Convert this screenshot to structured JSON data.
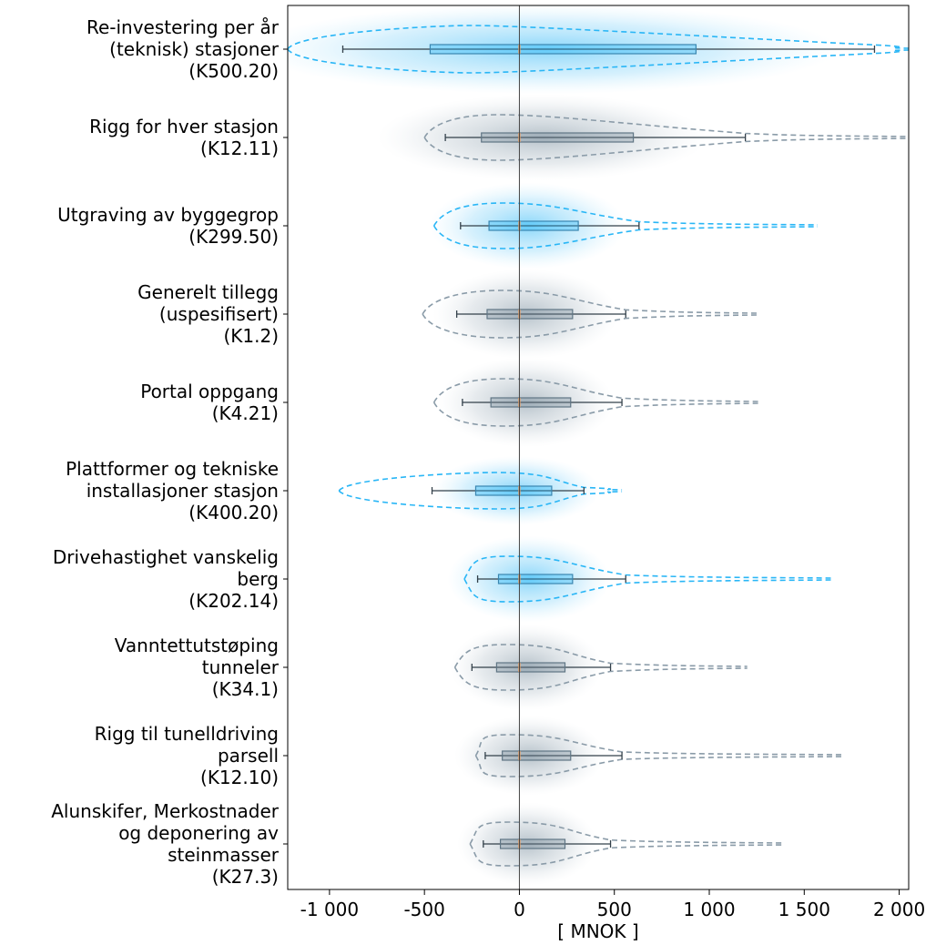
{
  "chart_data": {
    "type": "violin-box",
    "xlabel": "[ MNOK ]",
    "xlim": [
      -1220,
      2050
    ],
    "xticks": [
      {
        "value": -1000,
        "label": "-1 000"
      },
      {
        "value": -500,
        "label": "-500"
      },
      {
        "value": 0,
        "label": "0"
      },
      {
        "value": 500,
        "label": "500"
      },
      {
        "value": 1000,
        "label": "1 000"
      },
      {
        "value": 1500,
        "label": "1 500"
      },
      {
        "value": 2000,
        "label": "2 000"
      }
    ],
    "reference_line": 0,
    "colors": {
      "highlight": "#29b6f6",
      "neutral": "#8a9ba8",
      "median": "#f0a060"
    },
    "items": [
      {
        "label": [
          "Re-investering per år",
          "(teknisk) stasjoner",
          "(K500.20)"
        ],
        "highlight": true,
        "whisker_low": -930,
        "q1": -470,
        "median": 0,
        "q3": 930,
        "whisker_high": 1870,
        "tail_low": -1220,
        "tail_high": 2050,
        "half_height": 26
      },
      {
        "label": [
          "Rigg for hver stasjon",
          "(K12.11)"
        ],
        "highlight": false,
        "whisker_low": -390,
        "q1": -200,
        "median": 0,
        "q3": 600,
        "whisker_high": 1190,
        "tail_low": -500,
        "tail_high": 2050,
        "half_height": 25
      },
      {
        "label": [
          "Utgraving av byggegrop",
          "(K299.50)"
        ],
        "highlight": true,
        "whisker_low": -310,
        "q1": -160,
        "median": 0,
        "q3": 310,
        "whisker_high": 630,
        "tail_low": -450,
        "tail_high": 1570,
        "half_height": 25
      },
      {
        "label": [
          "Generelt tillegg",
          "(uspesifisert)",
          "(K1.2)"
        ],
        "highlight": false,
        "whisker_low": -330,
        "q1": -170,
        "median": 0,
        "q3": 280,
        "whisker_high": 560,
        "tail_low": -510,
        "tail_high": 1250,
        "half_height": 26
      },
      {
        "label": [
          "Portal oppgang",
          "(K4.21)"
        ],
        "highlight": false,
        "whisker_low": -300,
        "q1": -150,
        "median": 0,
        "q3": 270,
        "whisker_high": 540,
        "tail_low": -450,
        "tail_high": 1260,
        "half_height": 26
      },
      {
        "label": [
          "Plattformer og tekniske",
          "installasjoner stasjon",
          "(K400.20)"
        ],
        "highlight": true,
        "whisker_low": -460,
        "q1": -230,
        "median": 0,
        "q3": 170,
        "whisker_high": 340,
        "tail_low": -950,
        "tail_high": 540,
        "half_height": 20
      },
      {
        "label": [
          "Drivehastighet vanskelig",
          "berg",
          "(K202.14)"
        ],
        "highlight": true,
        "whisker_low": -220,
        "q1": -110,
        "median": 0,
        "q3": 280,
        "whisker_high": 560,
        "tail_low": -290,
        "tail_high": 1640,
        "half_height": 25
      },
      {
        "label": [
          "Vanntettutstøping",
          "tunneler",
          "(K34.1)"
        ],
        "highlight": false,
        "whisker_low": -250,
        "q1": -120,
        "median": 0,
        "q3": 240,
        "whisker_high": 480,
        "tail_low": -340,
        "tail_high": 1200,
        "half_height": 25
      },
      {
        "label": [
          "Rigg til tunelldriving",
          "parsell",
          "(K12.10)"
        ],
        "highlight": false,
        "whisker_low": -180,
        "q1": -90,
        "median": 0,
        "q3": 270,
        "whisker_high": 540,
        "tail_low": -230,
        "tail_high": 1700,
        "half_height": 23
      },
      {
        "label": [
          "Alunskifer, Merkostnader",
          "og deponering av",
          "steinmasser",
          "(K27.3)"
        ],
        "highlight": false,
        "whisker_low": -190,
        "q1": -100,
        "median": 0,
        "q3": 240,
        "whisker_high": 480,
        "tail_low": -260,
        "tail_high": 1390,
        "half_height": 24
      }
    ]
  }
}
